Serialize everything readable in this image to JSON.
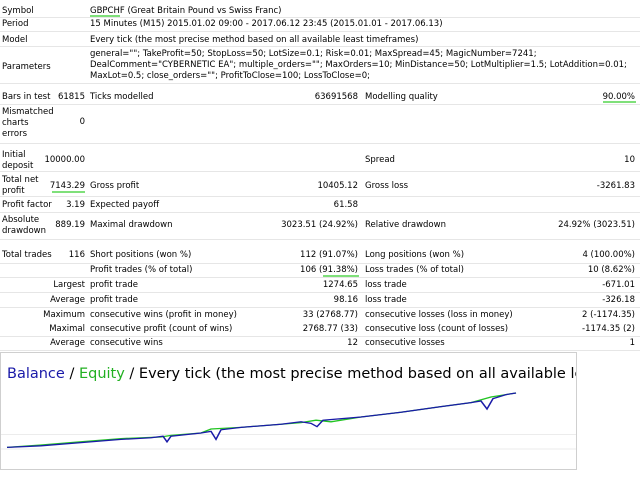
{
  "report": {
    "symbol": {
      "label": "Symbol",
      "value": "GBPCHF (Great Britain Pound vs Swiss Franc)"
    },
    "period": {
      "label": "Period",
      "value": "15 Minutes (M15) 2015.01.02 09:00 - 2017.06.12 23:45 (2015.01.01 - 2017.06.13)"
    },
    "model": {
      "label": "Model",
      "value": "Every tick (the most precise method based on all available least timeframes)"
    },
    "parameters": {
      "label": "Parameters",
      "value": "general=\"\"; TakeProfit=50; StopLoss=50; LotSize=0.1; Risk=0.01; MaxSpread=45; MagicNumber=7241; DealComment=\"CYBERNETIC EA\"; multiple_orders=\"\"; MaxOrders=10; MinDistance=50; LotMultiplier=1.5; LotAddition=0.01; MaxLot=0.5; close_orders=\"\"; ProfitToClose=100; LossToClose=0;"
    },
    "bars_in_test": {
      "label": "Bars in test",
      "value": "61815"
    },
    "ticks_modelled": {
      "label": "Ticks modelled",
      "value": "63691568"
    },
    "modelling_quality": {
      "label": "Modelling quality",
      "value": "90.00%"
    },
    "mismatched": {
      "label": "Mismatched charts errors",
      "value": "0"
    },
    "initial_deposit": {
      "label": "Initial deposit",
      "value": "10000.00"
    },
    "spread": {
      "label": "Spread",
      "value": "10"
    },
    "total_net_profit": {
      "label": "Total net profit",
      "value": "7143.29"
    },
    "gross_profit": {
      "label": "Gross profit",
      "value": "10405.12"
    },
    "gross_loss": {
      "label": "Gross loss",
      "value": "-3261.83"
    },
    "profit_factor": {
      "label": "Profit factor",
      "value": "3.19"
    },
    "expected_payoff": {
      "label": "Expected payoff",
      "value": "61.58"
    },
    "absolute_drawdown": {
      "label": "Absolute drawdown",
      "value": "889.19"
    },
    "maximal_drawdown": {
      "label": "Maximal drawdown",
      "value": "3023.51 (24.92%)"
    },
    "relative_drawdown": {
      "label": "Relative drawdown",
      "value": "24.92% (3023.51)"
    },
    "total_trades": {
      "label": "Total trades",
      "value": "116"
    },
    "short_positions": {
      "label": "Short positions (won %)",
      "value": "112 (91.07%)"
    },
    "long_positions": {
      "label": "Long positions (won %)",
      "value": "4 (100.00%)"
    },
    "profit_trades": {
      "label": "Profit trades (% of total)",
      "value": "106 (91.38%)"
    },
    "loss_trades": {
      "label": "Loss trades (% of total)",
      "value": "10 (8.62%)"
    },
    "largest": {
      "label": "Largest",
      "profit_label": "profit trade",
      "profit_value": "1274.65",
      "loss_label": "loss trade",
      "loss_value": "-671.01"
    },
    "average": {
      "label": "Average",
      "profit_label": "profit trade",
      "profit_value": "98.16",
      "loss_label": "loss trade",
      "loss_value": "-326.18"
    },
    "maximum": {
      "label": "Maximum",
      "wins_label": "consecutive wins (profit in money)",
      "wins_value": "33 (2768.77)",
      "losses_label": "consecutive losses (loss in money)",
      "losses_value": "2 (-1174.35)"
    },
    "maximal": {
      "label": "Maximal",
      "profit_label": "consecutive profit (count of wins)",
      "profit_value": "2768.77 (33)",
      "loss_label": "consecutive loss (count of losses)",
      "loss_value": "-1174.35 (2)"
    },
    "average_consec": {
      "label": "Average",
      "wins_label": "consecutive wins",
      "wins_value": "12",
      "losses_label": "consecutive losses",
      "losses_value": "1"
    }
  },
  "chart": {
    "legend_balance": "Balance",
    "legend_sep1": " / ",
    "legend_equity": "Equity",
    "legend_sep2": " / ",
    "legend_rest": "Every tick (the most precise method based on all available least time",
    "balance_color": "#1a1aa8",
    "equity_color": "#22c422",
    "highlight_color": "#7fe07a"
  }
}
